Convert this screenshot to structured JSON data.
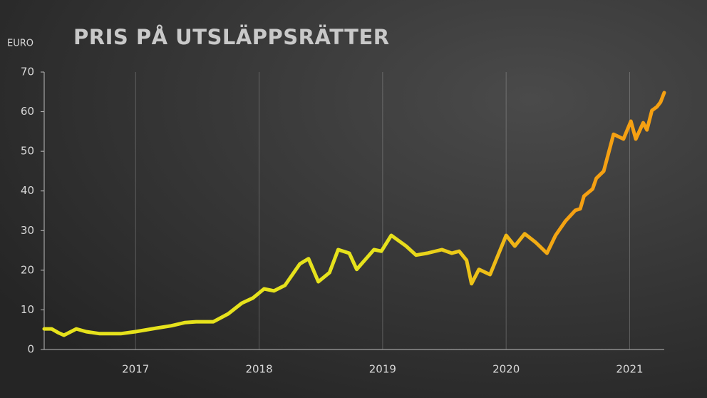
{
  "chart_data": {
    "type": "line",
    "title": "PRIS PÅ UTSLÄPPSRÄTTER",
    "y_label": "EURO",
    "x": [
      2016.26,
      2016.32,
      2016.37,
      2016.42,
      2016.52,
      2016.6,
      2016.71,
      2016.88,
      2017.0,
      2017.17,
      2017.29,
      2017.4,
      2017.49,
      2017.63,
      2017.75,
      2017.86,
      2017.95,
      2018.04,
      2018.12,
      2018.21,
      2018.33,
      2018.4,
      2018.48,
      2018.57,
      2018.64,
      2018.73,
      2018.79,
      2018.93,
      2018.99,
      2019.07,
      2019.19,
      2019.27,
      2019.36,
      2019.48,
      2019.56,
      2019.62,
      2019.68,
      2019.72,
      2019.78,
      2019.87,
      2020.0,
      2020.07,
      2020.15,
      2020.24,
      2020.33,
      2020.4,
      2020.48,
      2020.56,
      2020.6,
      2020.63,
      2020.7,
      2020.73,
      2020.79,
      2020.87,
      2020.95,
      2021.01,
      2021.05,
      2021.11,
      2021.14,
      2021.18,
      2021.22,
      2021.25,
      2021.28
    ],
    "values": [
      5.2,
      5.2,
      4.3,
      3.6,
      5.2,
      4.5,
      4.0,
      4.0,
      4.5,
      5.4,
      6.0,
      6.8,
      7.0,
      7.0,
      9.0,
      11.7,
      13.0,
      15.3,
      14.8,
      16.2,
      21.6,
      22.9,
      17.1,
      19.4,
      25.2,
      24.3,
      20.2,
      25.2,
      24.8,
      28.8,
      26.1,
      23.8,
      24.3,
      25.2,
      24.3,
      24.8,
      22.5,
      16.6,
      20.2,
      18.9,
      28.8,
      26.1,
      29.2,
      27.0,
      24.3,
      28.8,
      32.4,
      35.1,
      35.5,
      38.7,
      40.5,
      43.2,
      45.0,
      54.3,
      53.1,
      57.6,
      53.1,
      57.2,
      55.4,
      60.3,
      61.2,
      62.4,
      64.8
    ],
    "colors": [
      "#e6e21c",
      "#f5a012"
    ],
    "xlim": [
      2016.26,
      2021.28
    ],
    "xticks": [
      2017,
      2018,
      2019,
      2020,
      2021
    ],
    "ylim": [
      0,
      70
    ],
    "yticks": [
      0,
      10,
      20,
      30,
      40,
      50,
      60,
      70
    ],
    "grid": "x"
  }
}
